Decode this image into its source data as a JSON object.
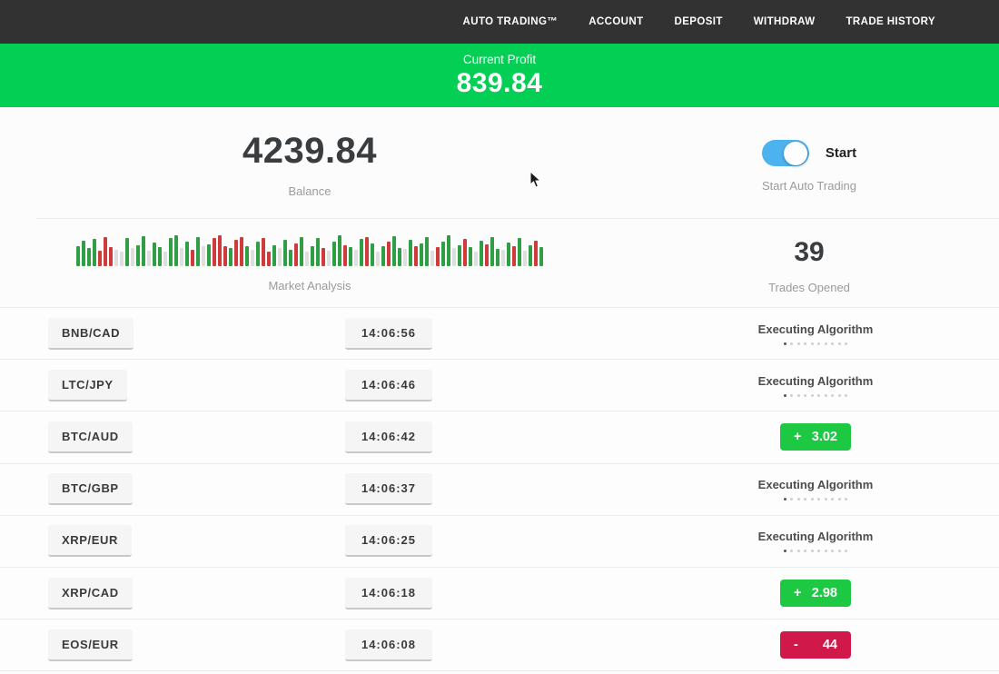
{
  "nav": {
    "items": [
      {
        "label": "AUTO TRADING™"
      },
      {
        "label": "ACCOUNT"
      },
      {
        "label": "DEPOSIT"
      },
      {
        "label": "WITHDRAW"
      },
      {
        "label": "TRADE HISTORY"
      }
    ]
  },
  "banner": {
    "label": "Current Profit",
    "value": "839.84"
  },
  "stats": {
    "balance": {
      "value": "4239.84",
      "label": "Balance"
    },
    "auto_trading": {
      "toggle_label": "Start",
      "caption": "Start Auto Trading",
      "state": "on"
    },
    "market_analysis": {
      "label": "Market Analysis",
      "bars": [
        "g60",
        "g78",
        "g55",
        "g82",
        "r48",
        "r88",
        "r58",
        "l50",
        "l45",
        "g85",
        "l55",
        "g65",
        "g92",
        "l48",
        "g72",
        "g58",
        "l45",
        "g85",
        "g95",
        "l55",
        "g75",
        "r50",
        "g88",
        "l60",
        "g68",
        "r85",
        "r95",
        "r62",
        "g55",
        "r80",
        "r90",
        "g60",
        "l50",
        "g75",
        "r85",
        "r45",
        "g65",
        "l55",
        "g80",
        "g50",
        "r70",
        "g90",
        "l45",
        "g62",
        "g85",
        "r55",
        "l48",
        "g75",
        "g95",
        "r65",
        "g58",
        "l50",
        "g82",
        "r88",
        "g70",
        "l45",
        "g60",
        "r75",
        "g92",
        "g55",
        "l52",
        "g80",
        "r62",
        "g70",
        "g88",
        "l48",
        "r58",
        "g75",
        "g95",
        "l55",
        "g65",
        "r82",
        "g58",
        "l45",
        "g78",
        "r68",
        "g88",
        "g52",
        "l50",
        "g72",
        "r60",
        "g85",
        "l48",
        "g65",
        "r78",
        "g58"
      ]
    },
    "trades_opened": {
      "value": "39",
      "label": "Trades Opened"
    }
  },
  "status": {
    "executing_label": "Executing Algorithm",
    "dots_count": 10
  },
  "trades": [
    {
      "pair": "BNB/CAD",
      "time": "14:06:56",
      "status": "executing"
    },
    {
      "pair": "LTC/JPY",
      "time": "14:06:46",
      "status": "executing"
    },
    {
      "pair": "BTC/AUD",
      "time": "14:06:42",
      "status": "profit",
      "sign": "+",
      "value": "3.02"
    },
    {
      "pair": "BTC/GBP",
      "time": "14:06:37",
      "status": "executing"
    },
    {
      "pair": "XRP/EUR",
      "time": "14:06:25",
      "status": "executing"
    },
    {
      "pair": "XRP/CAD",
      "time": "14:06:18",
      "status": "profit",
      "sign": "+",
      "value": "2.98"
    },
    {
      "pair": "EOS/EUR",
      "time": "14:06:08",
      "status": "loss",
      "sign": "-",
      "value": "44"
    }
  ],
  "colors": {
    "nav_bg": "#323232",
    "banner_green": "#04cf55",
    "badge_green": "#1dc943",
    "badge_red": "#d0194a",
    "toggle_blue": "#4db3ef",
    "bar_green": "#2f9e44",
    "bar_red": "#cf3b3b",
    "bar_light": "#dedede"
  }
}
